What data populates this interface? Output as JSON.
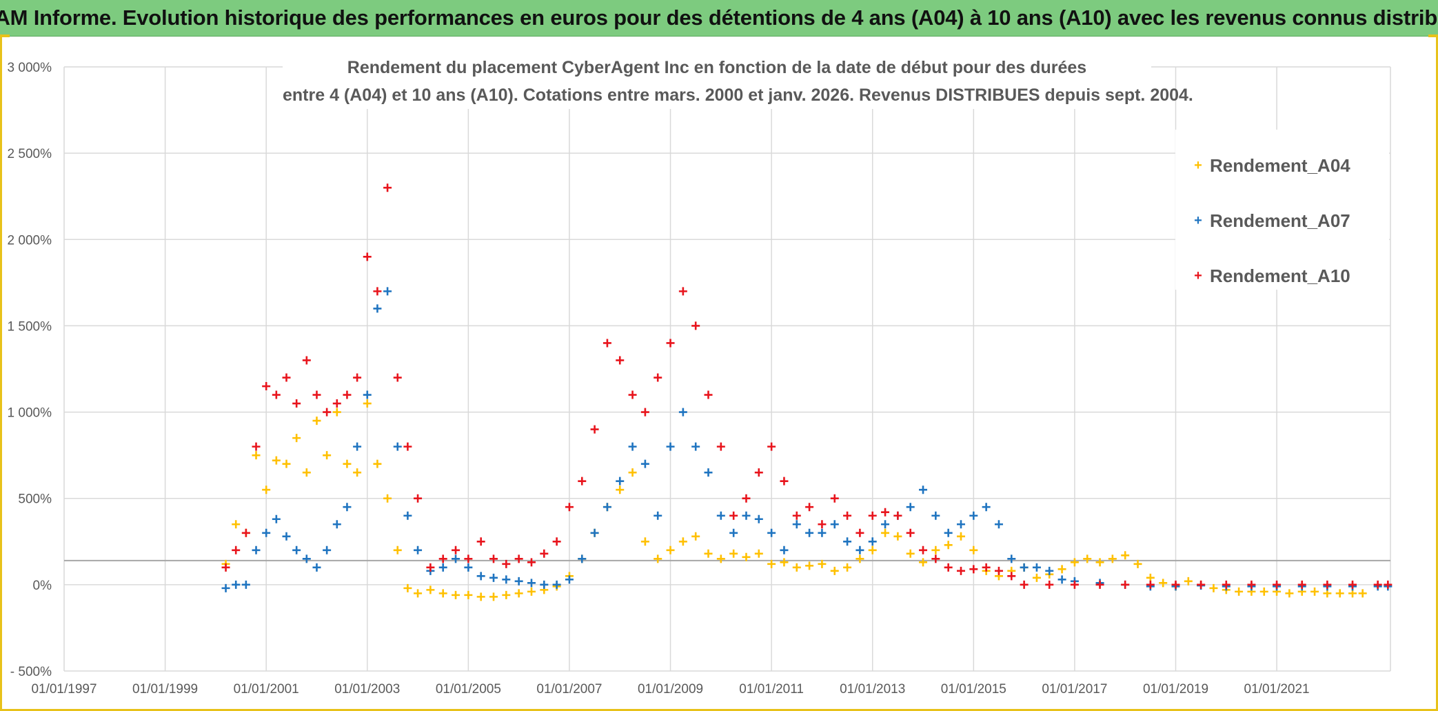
{
  "banner": {
    "title": "ADAM Informe. Evolution historique des performances en euros pour des détentions de 4 ans (A04) à 10 ans (A10) avec les revenus connus distribués"
  },
  "colors": {
    "banner_bg": "#7dcb7f",
    "frame_accent": "#e8c21a",
    "series_A04": "#ffc000",
    "series_A07": "#1f74c0",
    "series_A10": "#e8141c"
  },
  "chart_data": {
    "type": "scatter",
    "title_line1": "Rendement du placement CyberAgent Inc en fonction de la date de début pour des durées",
    "title_line2": "entre 4 (A04) et 10 ans (A10). Cotations entre mars. 2000 et janv. 2026. Revenus DISTRIBUES depuis sept. 2004.",
    "marker": "+",
    "x_unit": "year",
    "xlim": [
      1997.0,
      2023.25
    ],
    "ylim": [
      -500,
      3000
    ],
    "y_ticks": [
      -500,
      0,
      500,
      1000,
      1500,
      2000,
      2500,
      3000
    ],
    "y_tick_labels": [
      "- 500%",
      "0%",
      "500%",
      "1 000%",
      "1 500%",
      "2 000%",
      "2 500%",
      "3 000%"
    ],
    "x_ticks": [
      1997,
      1999,
      2001,
      2003,
      2005,
      2007,
      2009,
      2011,
      2013,
      2015,
      2017,
      2019,
      2021
    ],
    "x_tick_labels": [
      "01/01/1997",
      "01/01/1999",
      "01/01/2001",
      "01/01/2003",
      "01/01/2005",
      "01/01/2007",
      "01/01/2009",
      "01/01/2011",
      "01/01/2013",
      "01/01/2015",
      "01/01/2017",
      "01/01/2019",
      "01/01/2021"
    ],
    "reference_line_y": 140,
    "legend_position": "top-right",
    "series": [
      {
        "name": "Rendement_A04",
        "x": [
          2000.2,
          2000.4,
          2000.6,
          2000.8,
          2001.0,
          2001.2,
          2001.4,
          2001.6,
          2001.8,
          2002.0,
          2002.2,
          2002.4,
          2002.6,
          2002.8,
          2003.0,
          2003.2,
          2003.4,
          2003.6,
          2003.8,
          2004.0,
          2004.25,
          2004.5,
          2004.75,
          2005.0,
          2005.25,
          2005.5,
          2005.75,
          2006.0,
          2006.25,
          2006.5,
          2006.75,
          2007.0,
          2007.25,
          2007.5,
          2007.75,
          2008.0,
          2008.25,
          2008.5,
          2008.75,
          2009.0,
          2009.25,
          2009.5,
          2009.75,
          2010.0,
          2010.25,
          2010.5,
          2010.75,
          2011.0,
          2011.25,
          2011.5,
          2011.75,
          2012.0,
          2012.25,
          2012.5,
          2012.75,
          2013.0,
          2013.25,
          2013.5,
          2013.75,
          2014.0,
          2014.25,
          2014.5,
          2014.75,
          2015.0,
          2015.25,
          2015.5,
          2015.75,
          2016.0,
          2016.25,
          2016.5,
          2016.75,
          2017.0,
          2017.25,
          2017.5,
          2017.75,
          2018.0,
          2018.25,
          2018.5,
          2018.75,
          2019.0,
          2019.25,
          2019.5,
          2019.75,
          2020.0,
          2020.25,
          2020.5,
          2020.75,
          2021.0,
          2021.25,
          2021.5,
          2021.75,
          2022.0,
          2022.25,
          2022.5,
          2022.7
        ],
        "y": [
          120,
          350,
          300,
          750,
          550,
          720,
          700,
          850,
          650,
          950,
          750,
          1000,
          700,
          650,
          1050,
          700,
          500,
          200,
          -20,
          -50,
          -30,
          -50,
          -60,
          -60,
          -70,
          -70,
          -60,
          -50,
          -40,
          -30,
          -10,
          50,
          150,
          300,
          450,
          550,
          650,
          250,
          150,
          200,
          250,
          280,
          180,
          150,
          180,
          160,
          180,
          120,
          130,
          100,
          110,
          120,
          80,
          100,
          150,
          200,
          300,
          280,
          180,
          130,
          200,
          230,
          280,
          200,
          80,
          50,
          80,
          100,
          40,
          60,
          90,
          130,
          150,
          130,
          150,
          170,
          120,
          40,
          10,
          -10,
          20,
          0,
          -20,
          -30,
          -40,
          -40,
          -40,
          -40,
          -50,
          -40,
          -40,
          -50,
          -50,
          -50,
          -50
        ]
      },
      {
        "name": "Rendement_A07",
        "x": [
          2000.2,
          2000.4,
          2000.6,
          2000.8,
          2001.0,
          2001.2,
          2001.4,
          2001.6,
          2001.8,
          2002.0,
          2002.2,
          2002.4,
          2002.6,
          2002.8,
          2003.0,
          2003.2,
          2003.4,
          2003.6,
          2003.8,
          2004.0,
          2004.25,
          2004.5,
          2004.75,
          2005.0,
          2005.25,
          2005.5,
          2005.75,
          2006.0,
          2006.25,
          2006.5,
          2006.75,
          2007.0,
          2007.25,
          2007.5,
          2007.75,
          2008.0,
          2008.25,
          2008.5,
          2008.75,
          2009.0,
          2009.25,
          2009.5,
          2009.75,
          2010.0,
          2010.25,
          2010.5,
          2010.75,
          2011.0,
          2011.25,
          2011.5,
          2011.75,
          2012.0,
          2012.25,
          2012.5,
          2012.75,
          2013.0,
          2013.25,
          2013.5,
          2013.75,
          2014.0,
          2014.25,
          2014.5,
          2014.75,
          2015.0,
          2015.25,
          2015.5,
          2015.75,
          2016.0,
          2016.25,
          2016.5,
          2016.75,
          2017.0,
          2017.5,
          2018.0,
          2018.5,
          2019.0,
          2019.5,
          2020.0,
          2020.5,
          2021.0,
          2021.5,
          2022.0,
          2022.5,
          2023.0,
          2023.2
        ],
        "y": [
          -20,
          0,
          0,
          200,
          300,
          380,
          280,
          200,
          150,
          100,
          200,
          350,
          450,
          800,
          1100,
          1600,
          1700,
          800,
          400,
          200,
          80,
          100,
          150,
          100,
          50,
          40,
          30,
          20,
          10,
          0,
          0,
          30,
          150,
          300,
          450,
          600,
          800,
          700,
          400,
          800,
          1000,
          800,
          650,
          400,
          300,
          400,
          380,
          300,
          200,
          350,
          300,
          300,
          350,
          250,
          200,
          250,
          350,
          400,
          450,
          550,
          400,
          300,
          350,
          400,
          450,
          350,
          150,
          100,
          100,
          80,
          30,
          20,
          10,
          0,
          -10,
          -10,
          -5,
          -10,
          -10,
          -10,
          -10,
          -10,
          -10,
          -10,
          -10
        ]
      },
      {
        "name": "Rendement_A10",
        "x": [
          2000.2,
          2000.4,
          2000.6,
          2000.8,
          2001.0,
          2001.2,
          2001.4,
          2001.6,
          2001.8,
          2002.0,
          2002.2,
          2002.4,
          2002.6,
          2002.8,
          2003.0,
          2003.2,
          2003.4,
          2003.6,
          2003.8,
          2004.0,
          2004.25,
          2004.5,
          2004.75,
          2005.0,
          2005.25,
          2005.5,
          2005.75,
          2006.0,
          2006.25,
          2006.5,
          2006.75,
          2007.0,
          2007.25,
          2007.5,
          2007.75,
          2008.0,
          2008.25,
          2008.5,
          2008.75,
          2009.0,
          2009.25,
          2009.5,
          2009.75,
          2010.0,
          2010.25,
          2010.5,
          2010.75,
          2011.0,
          2011.25,
          2011.5,
          2011.75,
          2012.0,
          2012.25,
          2012.5,
          2012.75,
          2013.0,
          2013.25,
          2013.5,
          2013.75,
          2014.0,
          2014.25,
          2014.5,
          2014.75,
          2015.0,
          2015.25,
          2015.5,
          2015.75,
          2016.0,
          2016.5,
          2017.0,
          2017.5,
          2018.0,
          2018.5,
          2019.0,
          2019.5,
          2020.0,
          2020.5,
          2021.0,
          2021.5,
          2022.0,
          2022.5,
          2023.0,
          2023.2
        ],
        "y": [
          100,
          200,
          300,
          800,
          1150,
          1100,
          1200,
          1050,
          1300,
          1100,
          1000,
          1050,
          1100,
          1200,
          1900,
          1700,
          2300,
          1200,
          800,
          500,
          100,
          150,
          200,
          150,
          250,
          150,
          120,
          150,
          130,
          180,
          250,
          450,
          600,
          900,
          1400,
          1300,
          1100,
          1000,
          1200,
          1400,
          1700,
          1500,
          1100,
          800,
          400,
          500,
          650,
          800,
          600,
          400,
          450,
          350,
          500,
          400,
          300,
          400,
          420,
          400,
          300,
          200,
          150,
          100,
          80,
          90,
          100,
          80,
          50,
          0,
          0,
          0,
          0,
          0,
          0,
          0,
          0,
          0,
          0,
          0,
          0,
          0,
          0,
          0,
          0
        ]
      }
    ]
  },
  "legend": {
    "items": [
      {
        "label": "Rendement_A04",
        "marker": "+"
      },
      {
        "label": "Rendement_A07",
        "marker": "+"
      },
      {
        "label": "Rendement_A10",
        "marker": "+"
      }
    ]
  }
}
